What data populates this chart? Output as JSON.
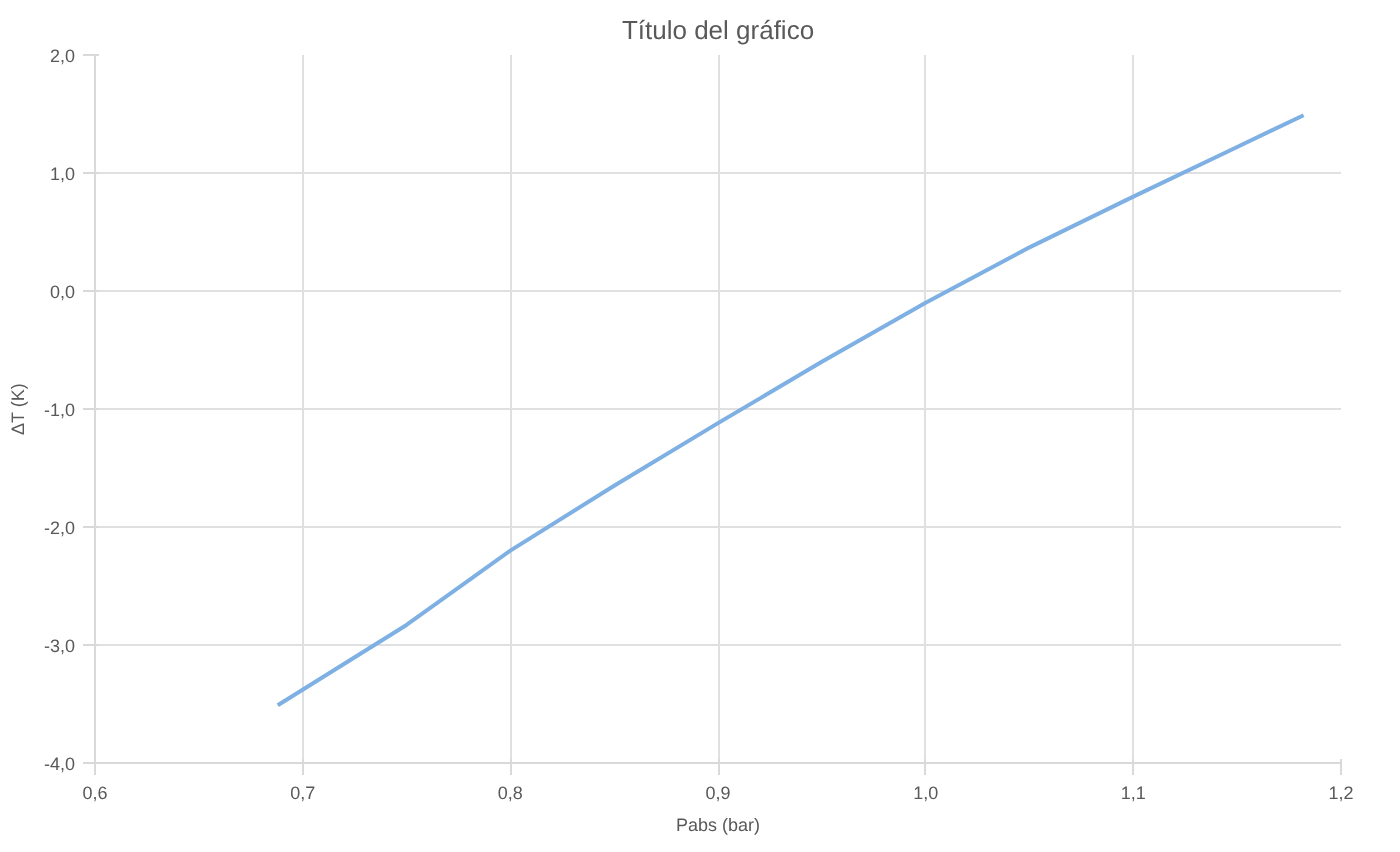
{
  "chart_data": {
    "type": "line",
    "title": "Título del gráfico",
    "xlabel": "Pabs (bar)",
    "ylabel": "ΔT (K)",
    "x": [
      0.688,
      0.75,
      0.8,
      0.85,
      0.9,
      0.95,
      1.0,
      1.05,
      1.1,
      1.15,
      1.182
    ],
    "series": [
      {
        "color": "#7eb0e3",
        "values": [
          -3.51,
          -2.83,
          -2.2,
          -1.65,
          -1.12,
          -0.6,
          -0.1,
          0.37,
          0.8,
          1.22,
          1.49
        ]
      }
    ],
    "xlim": [
      0.6,
      1.2
    ],
    "ylim": [
      -4.0,
      2.0
    ],
    "xticks": [
      {
        "value": 0.6,
        "label": "0,6"
      },
      {
        "value": 0.7,
        "label": "0,7"
      },
      {
        "value": 0.8,
        "label": "0,8"
      },
      {
        "value": 0.9,
        "label": "0,9"
      },
      {
        "value": 1.0,
        "label": "1,0"
      },
      {
        "value": 1.1,
        "label": "1,1"
      },
      {
        "value": 1.2,
        "label": "1,2"
      }
    ],
    "yticks": [
      {
        "value": -4.0,
        "label": "-4,0"
      },
      {
        "value": -3.0,
        "label": "-3,0"
      },
      {
        "value": -2.0,
        "label": "-2,0"
      },
      {
        "value": -1.0,
        "label": "-1,0"
      },
      {
        "value": 0.0,
        "label": "0,0"
      },
      {
        "value": 1.0,
        "label": "1,0"
      },
      {
        "value": 2.0,
        "label": "2,0"
      }
    ],
    "grid": true,
    "marker": "none",
    "line_style": "solid"
  }
}
